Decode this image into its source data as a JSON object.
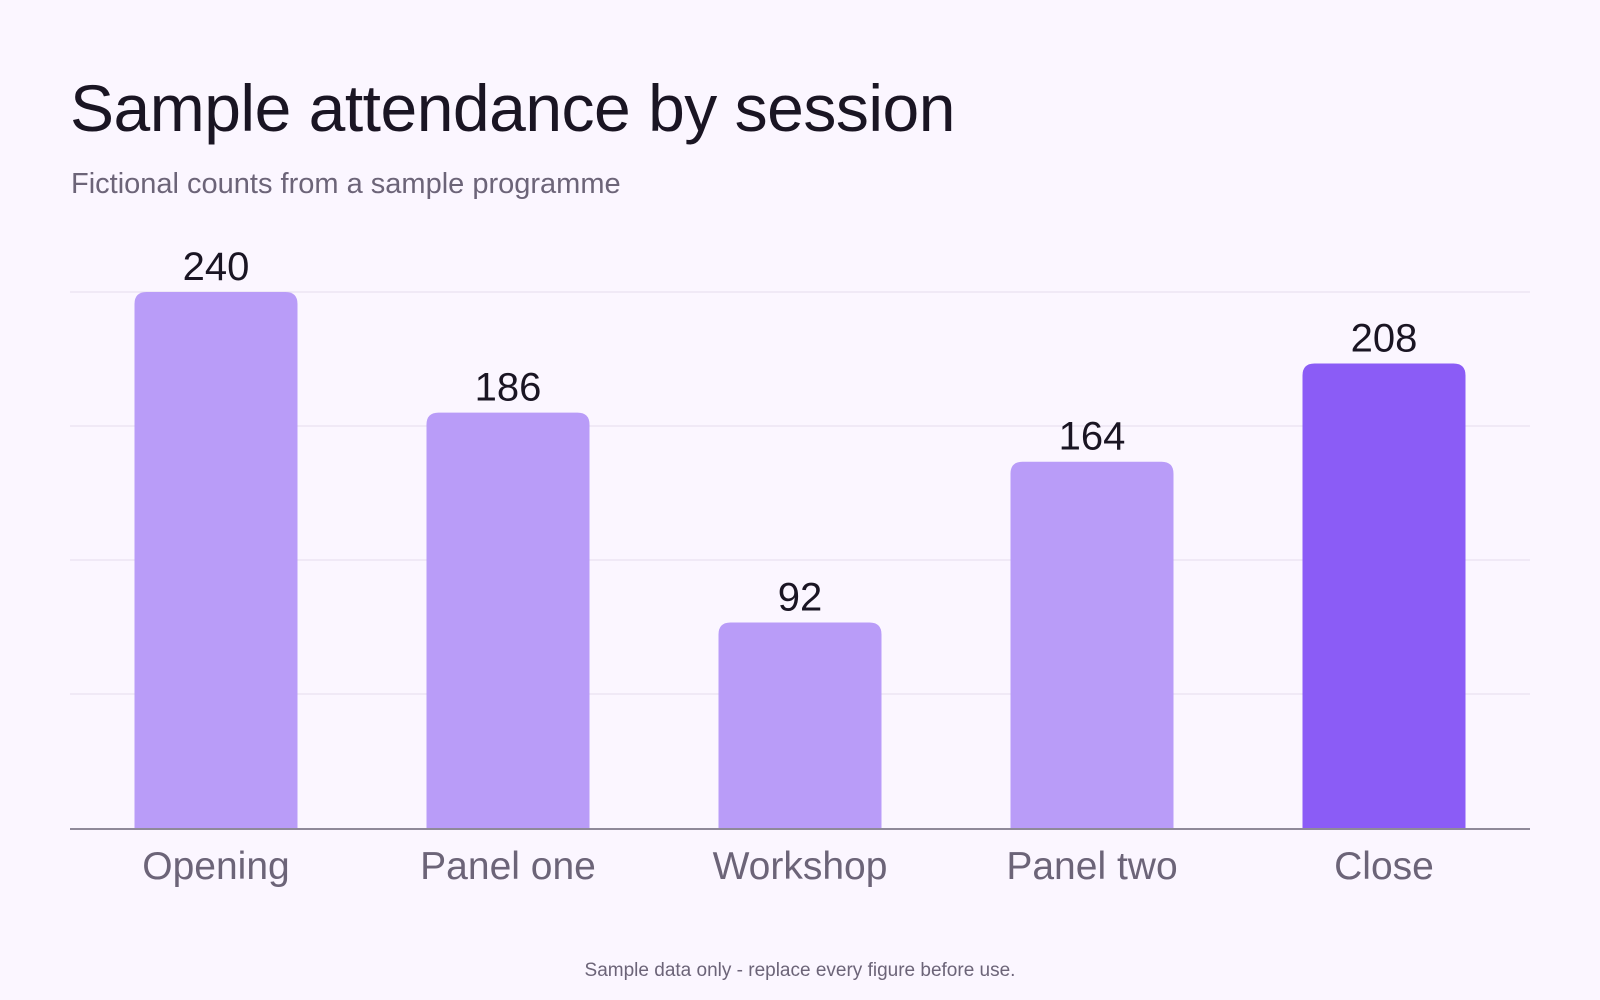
{
  "colors": {
    "background": "#fbf6ff",
    "bar": "#b99cf8",
    "bar_highlight": "#8b5cf6",
    "grid": "#e4dcee",
    "axis": "#8f8999",
    "value_label": "#1a1523",
    "category_label": "#6c6478"
  },
  "chart_data": {
    "type": "bar",
    "title": "Sample attendance by session",
    "subtitle": "Fictional counts from a sample programme",
    "categories": [
      "Opening",
      "Panel one",
      "Workshop",
      "Panel two",
      "Close"
    ],
    "values": [
      240,
      186,
      92,
      164,
      208
    ],
    "highlight": "Close",
    "ylim": [
      0,
      240
    ],
    "grid": true,
    "footnote": "Sample data only - replace every figure before use."
  }
}
